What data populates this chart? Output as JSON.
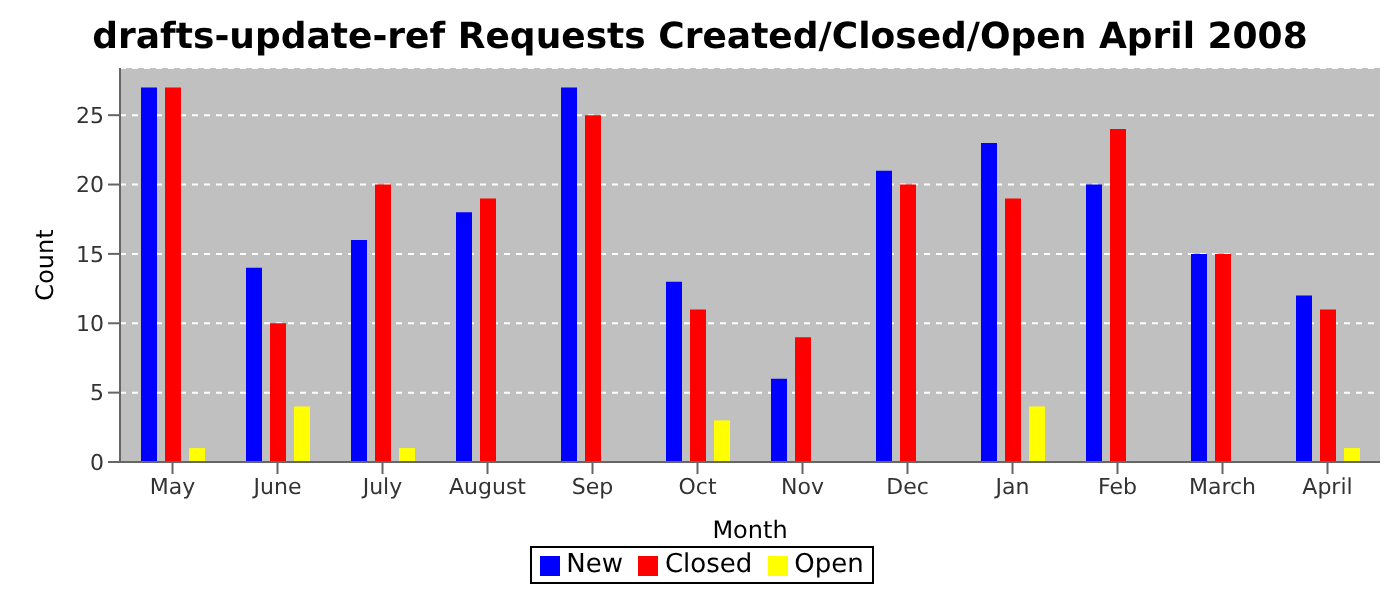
{
  "chart_data": {
    "type": "bar",
    "title": "drafts-update-ref Requests Created/Closed/Open April 2008",
    "xlabel": "Month",
    "ylabel": "Count",
    "categories": [
      "May",
      "June",
      "July",
      "August",
      "Sep",
      "Oct",
      "Nov",
      "Dec",
      "Jan",
      "Feb",
      "March",
      "April"
    ],
    "series": [
      {
        "name": "New",
        "color": "#0000ff",
        "values": [
          27,
          14,
          16,
          18,
          27,
          13,
          6,
          21,
          23,
          20,
          15,
          12
        ]
      },
      {
        "name": "Closed",
        "color": "#ff0000",
        "values": [
          27,
          10,
          20,
          19,
          25,
          11,
          9,
          20,
          19,
          24,
          15,
          11
        ]
      },
      {
        "name": "Open",
        "color": "#ffff00",
        "values": [
          1,
          4,
          1,
          0,
          0,
          3,
          0,
          0,
          4,
          0,
          0,
          1
        ]
      }
    ],
    "ylim": [
      0,
      28.4
    ],
    "yticks": [
      0,
      5,
      10,
      15,
      20,
      25
    ],
    "grid": "y",
    "legend": "bottom"
  }
}
